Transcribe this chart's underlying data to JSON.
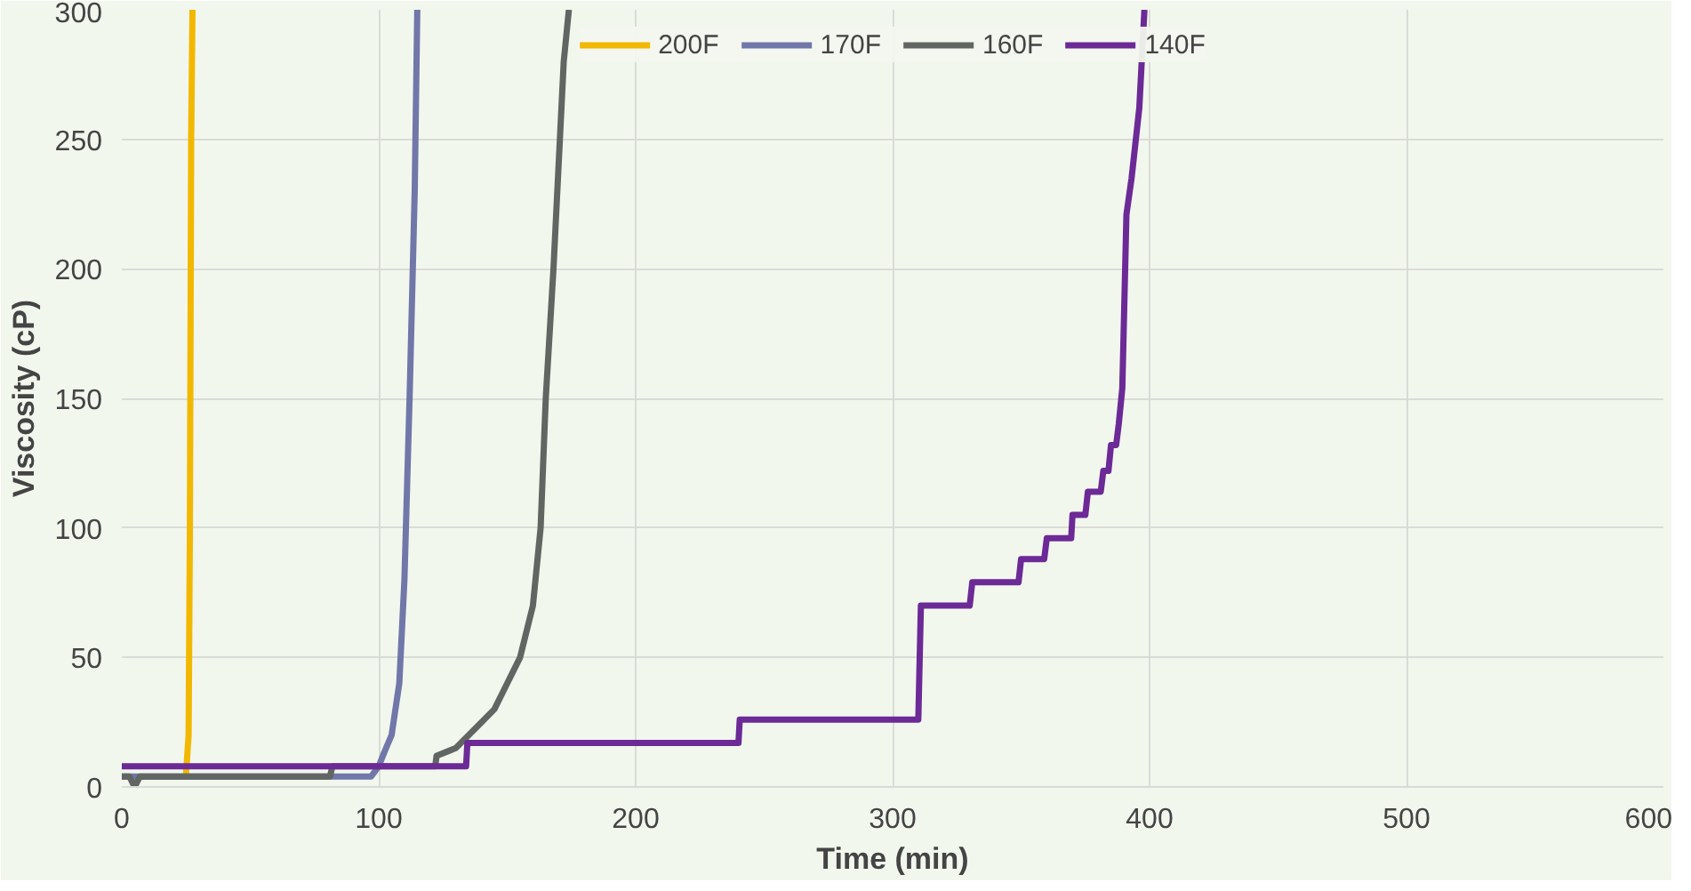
{
  "chart_data": {
    "type": "line",
    "xlabel": "Time (min)",
    "ylabel": "Viscosity (cP)",
    "xlim": [
      0,
      600
    ],
    "ylim": [
      0,
      300
    ],
    "xticks": [
      0,
      100,
      200,
      300,
      400,
      500,
      600
    ],
    "yticks": [
      0,
      50,
      100,
      150,
      200,
      250,
      300
    ],
    "grid": true,
    "legend": "top",
    "marker": "none",
    "line_style": "solid",
    "series": [
      {
        "name": "200F",
        "color": "#f2b800",
        "x": [
          25,
          26,
          26.5,
          27,
          27.5
        ],
        "values": [
          5,
          20,
          100,
          250,
          300
        ]
      },
      {
        "name": "170F",
        "color": "#7177a8",
        "x": [
          0,
          97,
          100,
          102,
          105,
          108,
          110,
          112,
          114,
          115
        ],
        "values": [
          4,
          4,
          8,
          13,
          20,
          40,
          80,
          150,
          230,
          300
        ]
      },
      {
        "name": "160F",
        "color": "#626662",
        "x": [
          0,
          3,
          5,
          7,
          81,
          82,
          122,
          122.5,
          130,
          135,
          140,
          145,
          150,
          155,
          160,
          163,
          165,
          168,
          172,
          174
        ],
        "values": [
          4,
          4,
          0,
          4,
          4,
          8,
          8,
          12,
          15,
          20,
          25,
          30,
          40,
          50,
          70,
          100,
          150,
          200,
          280,
          300
        ]
      },
      {
        "name": "140F",
        "color": "#6c2a96",
        "x": [
          0,
          134,
          134.5,
          240,
          240.5,
          310,
          311,
          330,
          331,
          349,
          350,
          359,
          360,
          369.5,
          370,
          375,
          376,
          381,
          382,
          384,
          385,
          387,
          388,
          389.4,
          391,
          393,
          396,
          398
        ],
        "values": [
          8,
          8,
          17,
          17,
          26,
          26,
          70,
          70,
          79,
          79,
          88,
          88,
          96,
          96,
          105,
          105,
          114,
          114,
          122,
          122,
          132,
          132,
          140,
          154,
          221,
          235,
          262,
          300
        ]
      }
    ]
  }
}
